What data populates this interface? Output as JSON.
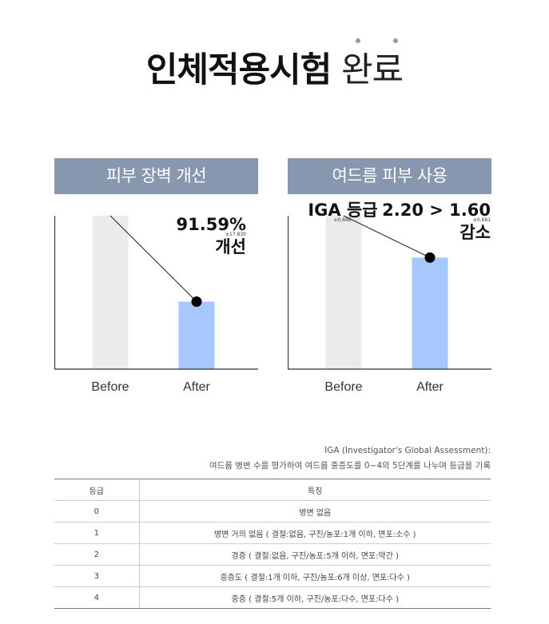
{
  "header": {
    "title_bold": "인체적용시험",
    "title_light": "완료"
  },
  "panels": [
    {
      "title": "피부 장벽 개선",
      "annotation": {
        "value": "91.59%",
        "sub": "±17.830",
        "label": "개선"
      }
    },
    {
      "title": "여드름 피부 사용",
      "annotation": {
        "line1": "IGA 등급",
        "value": "2.20 > 1.60",
        "sub_left": "±0.696",
        "sub_right": "±0.681",
        "label": "감소"
      }
    }
  ],
  "chart_data": [
    {
      "type": "bar",
      "title": "피부 장벽 개선",
      "categories": [
        "Before",
        "After"
      ],
      "values": [
        100,
        44
      ],
      "colors": [
        "#ebebeb",
        "#a6c8ff"
      ],
      "ylim": [
        0,
        100
      ],
      "grid": false,
      "trend_line": true
    },
    {
      "type": "bar",
      "title": "여드름 피부 사용",
      "categories": [
        "Before",
        "After"
      ],
      "values": [
        2.2,
        1.6
      ],
      "colors": [
        "#ebebeb",
        "#a6c8ff"
      ],
      "ylim": [
        0,
        2.2
      ],
      "grid": false,
      "trend_line": true
    }
  ],
  "notes": {
    "line1": "IGA (Investigator's Global Assessment):",
    "line2": "여드름 병변 수를 평가하여 여드름 중증도를 0~4의 5단계를 나누며 등급을 기록"
  },
  "table": {
    "headers": [
      "등급",
      "특징"
    ],
    "rows": [
      [
        "0",
        "병변 없음"
      ],
      [
        "1",
        "병변 거의 없음 ( 결절:없음, 구진/농포:1개 이하, 면포:소수 )"
      ],
      [
        "2",
        "경증 ( 결절:없음, 구진/농포:5개 이하, 면포:약간 )"
      ],
      [
        "3",
        "중증도 ( 결절:1개 이하, 구진/농포:6개 이상, 면포:다수 )"
      ],
      [
        "4",
        "중증 ( 결절:5개 이하, 구진/농포:다수, 면포:다수 )"
      ]
    ]
  },
  "colors": {
    "panel_header": "#8797b0",
    "before_bar": "#ebebeb",
    "after_bar": "#a6c8ff",
    "highlight": "#c9d3e4",
    "dots": "#8a9ab8"
  }
}
